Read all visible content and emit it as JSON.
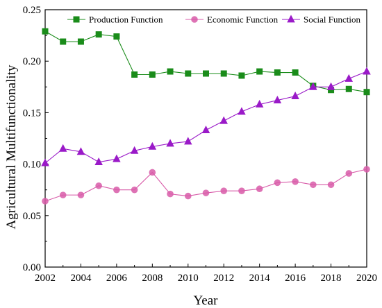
{
  "chart_data": {
    "type": "line",
    "xlabel": "Year",
    "ylabel": "Agricultural Multifunctionality",
    "xlim": [
      2002,
      2020
    ],
    "ylim": [
      0.0,
      0.25
    ],
    "x_ticks": [
      "2002",
      "2004",
      "2006",
      "2008",
      "2010",
      "2012",
      "2014",
      "2016",
      "2018",
      "2020"
    ],
    "y_ticks": [
      "0.00",
      "0.05",
      "0.10",
      "0.15",
      "0.20",
      "0.25"
    ],
    "x": [
      2002,
      2003,
      2004,
      2005,
      2006,
      2007,
      2008,
      2009,
      2010,
      2011,
      2012,
      2013,
      2014,
      2015,
      2016,
      2017,
      2018,
      2019,
      2020
    ],
    "legend_position": "top",
    "grid": false,
    "series": [
      {
        "name": "Production Function",
        "color": "#1a8c1a",
        "marker": "square",
        "values": [
          0.229,
          0.219,
          0.219,
          0.226,
          0.224,
          0.187,
          0.187,
          0.19,
          0.188,
          0.188,
          0.188,
          0.186,
          0.19,
          0.189,
          0.189,
          0.176,
          0.172,
          0.173,
          0.17
        ]
      },
      {
        "name": "Economic Function",
        "color": "#d85aa8",
        "marker": "circle",
        "values": [
          0.064,
          0.07,
          0.07,
          0.079,
          0.075,
          0.075,
          0.092,
          0.071,
          0.069,
          0.072,
          0.074,
          0.074,
          0.076,
          0.082,
          0.083,
          0.08,
          0.08,
          0.091,
          0.095
        ]
      },
      {
        "name": "Social Function",
        "color": "#9a1ac8",
        "marker": "triangle",
        "values": [
          0.101,
          0.115,
          0.112,
          0.102,
          0.105,
          0.113,
          0.117,
          0.12,
          0.122,
          0.133,
          0.142,
          0.151,
          0.158,
          0.162,
          0.166,
          0.175,
          0.175,
          0.183,
          0.19
        ]
      }
    ]
  }
}
